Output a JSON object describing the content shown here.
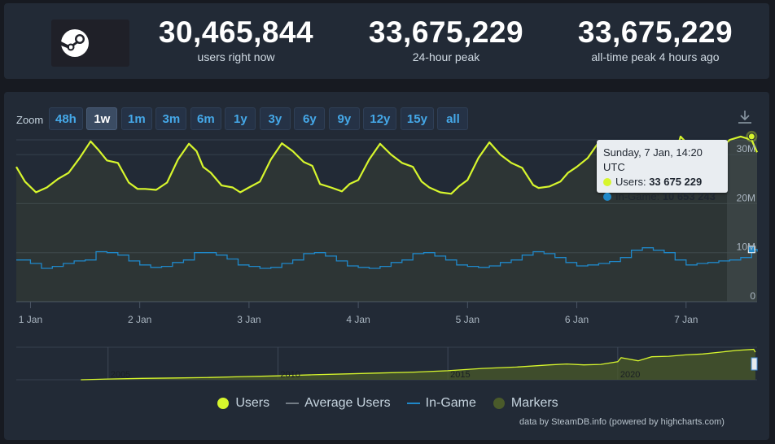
{
  "stats": [
    {
      "value": "30,465,844",
      "label": "users right now"
    },
    {
      "value": "33,675,229",
      "label": "24-hour peak"
    },
    {
      "value": "33,675,229",
      "label": "all-time peak 4 hours ago"
    }
  ],
  "zoom": {
    "label": "Zoom",
    "buttons": [
      "48h",
      "1w",
      "1m",
      "3m",
      "6m",
      "1y",
      "3y",
      "6y",
      "9y",
      "12y",
      "15y",
      "all"
    ],
    "active": "1w"
  },
  "tooltip": {
    "title": "Sunday, 7 Jan, 14:20 UTC",
    "users_label": "Users:",
    "users_value": "33 675 229",
    "ingame_label": "In-Game:",
    "ingame_value": "10 653 243"
  },
  "legend": [
    "Users",
    "Average Users",
    "In-Game",
    "Markers"
  ],
  "credits": "data by SteamDB.info (powered by highcharts.com)",
  "colors": {
    "users": "#d7f62d",
    "ingame": "#1f88c9",
    "markers": "#4a5a2a",
    "average": "#737c85",
    "panel": "#222a36",
    "background": "#171a21"
  },
  "icons": {
    "logo": "steam-logo-icon",
    "download": "download-icon"
  },
  "chart_data": [
    {
      "type": "line",
      "title": "",
      "x_tick_labels": [
        "1 Jan",
        "2 Jan",
        "3 Jan",
        "4 Jan",
        "5 Jan",
        "6 Jan",
        "7 Jan"
      ],
      "y_tick_labels": [
        "0",
        "10M",
        "20M",
        "30M"
      ],
      "ylim": [
        0,
        33000000
      ],
      "xlim_days": [
        0.87,
        7.65
      ],
      "series": [
        {
          "name": "Users",
          "x_day": [
            0.87,
            0.95,
            1.05,
            1.15,
            1.25,
            1.35,
            1.45,
            1.55,
            1.62,
            1.7,
            1.8,
            1.9,
            1.98,
            2.05,
            2.15,
            2.25,
            2.35,
            2.45,
            2.52,
            2.58,
            2.65,
            2.75,
            2.85,
            2.92,
            3.0,
            3.1,
            3.2,
            3.3,
            3.4,
            3.5,
            3.58,
            3.65,
            3.75,
            3.85,
            3.92,
            4.0,
            4.1,
            4.2,
            4.3,
            4.4,
            4.5,
            4.58,
            4.65,
            4.75,
            4.85,
            4.92,
            5.0,
            5.1,
            5.2,
            5.3,
            5.4,
            5.5,
            5.6,
            5.65,
            5.75,
            5.85,
            5.92,
            6.0,
            6.1,
            6.2,
            6.3,
            6.4,
            6.5,
            6.6,
            6.68,
            6.75,
            6.85,
            6.95,
            7.0,
            7.1,
            7.2,
            7.3,
            7.4,
            7.5,
            7.6,
            7.65
          ],
          "values": [
            27500000,
            24500000,
            22300000,
            23300000,
            25000000,
            26300000,
            29300000,
            32700000,
            31000000,
            28800000,
            28300000,
            24300000,
            23000000,
            23000000,
            22800000,
            24300000,
            29000000,
            32200000,
            30700000,
            27500000,
            26300000,
            23700000,
            23300000,
            22300000,
            23300000,
            24500000,
            29000000,
            32300000,
            30700000,
            28500000,
            27700000,
            24000000,
            23300000,
            22500000,
            24000000,
            24800000,
            29000000,
            32200000,
            30000000,
            28300000,
            27500000,
            24500000,
            23300000,
            22300000,
            22000000,
            23500000,
            24800000,
            29300000,
            32500000,
            30000000,
            28300000,
            27300000,
            23800000,
            23200000,
            23500000,
            24500000,
            26300000,
            27500000,
            29300000,
            32500000,
            30700000,
            28000000,
            27000000,
            24000000,
            24000000,
            25000000,
            26000000,
            33675229,
            32500000,
            30000000,
            28000000,
            31000000,
            33000000,
            33675229,
            33000000,
            30465844
          ]
        },
        {
          "name": "In-Game",
          "x_day": [
            0.87,
            1.0,
            1.1,
            1.2,
            1.3,
            1.4,
            1.5,
            1.6,
            1.7,
            1.8,
            1.9,
            2.0,
            2.1,
            2.2,
            2.3,
            2.4,
            2.5,
            2.6,
            2.7,
            2.8,
            2.9,
            3.0,
            3.1,
            3.2,
            3.3,
            3.4,
            3.5,
            3.6,
            3.7,
            3.8,
            3.9,
            4.0,
            4.1,
            4.2,
            4.3,
            4.4,
            4.5,
            4.6,
            4.7,
            4.8,
            4.9,
            5.0,
            5.1,
            5.2,
            5.3,
            5.4,
            5.5,
            5.6,
            5.7,
            5.8,
            5.9,
            6.0,
            6.1,
            6.2,
            6.3,
            6.4,
            6.5,
            6.6,
            6.7,
            6.8,
            6.9,
            7.0,
            7.1,
            7.2,
            7.3,
            7.4,
            7.5,
            7.6,
            7.65
          ],
          "values": [
            8500000,
            7800000,
            6800000,
            7200000,
            7800000,
            8300000,
            8500000,
            10200000,
            10000000,
            9500000,
            8300000,
            7500000,
            7000000,
            7200000,
            8000000,
            8500000,
            10000000,
            10000000,
            9500000,
            8700000,
            7500000,
            7200000,
            6800000,
            7000000,
            7800000,
            8500000,
            9800000,
            10000000,
            9300000,
            8300000,
            7300000,
            7000000,
            6800000,
            7200000,
            8000000,
            8500000,
            9800000,
            10000000,
            9300000,
            8500000,
            7500000,
            7200000,
            7000000,
            7300000,
            8000000,
            8500000,
            9500000,
            10200000,
            9800000,
            9000000,
            8000000,
            7300000,
            7500000,
            7800000,
            8200000,
            9000000,
            10500000,
            11000000,
            10500000,
            10000000,
            8500000,
            7500000,
            7800000,
            8000000,
            8300000,
            8500000,
            9000000,
            10653243,
            10200000
          ]
        }
      ]
    },
    {
      "type": "area",
      "title": "",
      "x_tick_labels": [
        "2005",
        "2010",
        "2015",
        "2020"
      ],
      "series": [
        {
          "name": "Users",
          "x_year": [
            2004.2,
            2005.0,
            2006.0,
            2007.0,
            2008.0,
            2009.0,
            2010.0,
            2011.0,
            2012.0,
            2013.0,
            2014.0,
            2015.0,
            2016.0,
            2017.0,
            2018.0,
            2018.5,
            2019.0,
            2019.5,
            2020.0,
            2020.1,
            2020.3,
            2020.6,
            2021.0,
            2021.5,
            2022.0,
            2022.5,
            2023.0,
            2023.5,
            2024.0,
            2024.05
          ],
          "values": [
            0,
            800000,
            1500000,
            2000000,
            2500000,
            3500000,
            4300000,
            5500000,
            6500000,
            7500000,
            8500000,
            10000000,
            12500000,
            14000000,
            16500000,
            17500000,
            16500000,
            17000000,
            20000000,
            24500000,
            23000000,
            21000000,
            25500000,
            26000000,
            27500000,
            28500000,
            30500000,
            32500000,
            33675229,
            30465844
          ]
        }
      ]
    }
  ]
}
